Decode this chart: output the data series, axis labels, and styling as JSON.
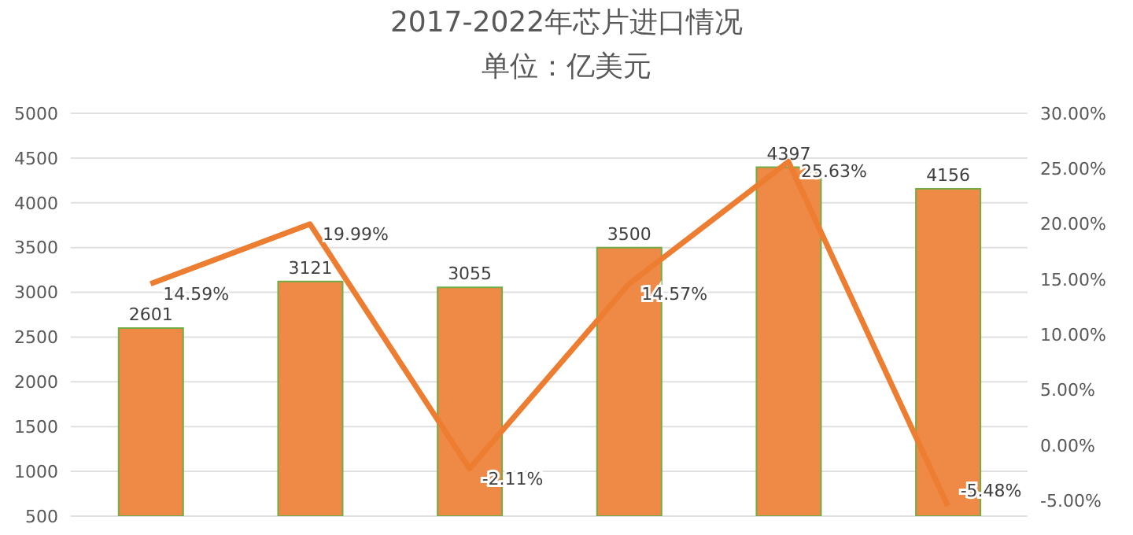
{
  "chart_data": {
    "type": "bar",
    "title": "2017-2022年芯片进口情况",
    "subtitle": "单位：亿美元",
    "categories": [
      null,
      null,
      null,
      null,
      null,
      null
    ],
    "series": [
      {
        "color": "#ee8a45",
        "values": [
          2601,
          3121,
          3055,
          3500,
          4397,
          4156
        ],
        "data_labels": true
      },
      {
        "type": "line",
        "axis": "y2",
        "color": "#ed7d31",
        "marker": "none",
        "line_style": "solid",
        "values": [
          14.59,
          19.99,
          -2.11,
          14.57,
          25.63,
          -5.48
        ],
        "value_labels": [
          "14.59%",
          "19.99%",
          "-2.11%",
          "14.57%",
          "25.63%",
          "-5.48%"
        ]
      }
    ],
    "ylim": [
      500,
      5000
    ],
    "yticks": [
      500,
      1000,
      1500,
      2000,
      2500,
      3000,
      3500,
      4000,
      4500,
      5000
    ],
    "y2lim": [
      -6.4,
      30
    ],
    "y2ticks": [
      {
        "value": -5,
        "label": "-5.00%"
      },
      {
        "value": 0,
        "label": "0.00%"
      },
      {
        "value": 5,
        "label": "5.00%"
      },
      {
        "value": 10,
        "label": "10.00%"
      },
      {
        "value": 15,
        "label": "15.00%"
      },
      {
        "value": 20,
        "label": "20.00%"
      },
      {
        "value": 25,
        "label": "25.00%"
      },
      {
        "value": 30,
        "label": "30.00%"
      }
    ],
    "grid": "y",
    "legend": false
  }
}
